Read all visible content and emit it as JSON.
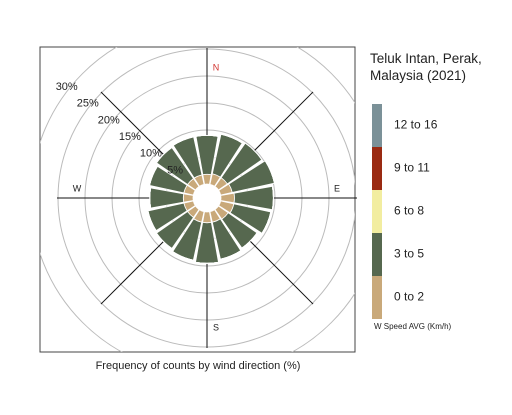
{
  "chart_data": {
    "type": "windrose",
    "title": "Teluk Intan, Perak, Malaysia (2021)",
    "xlabel": "Frequency of counts by wind direction (%)",
    "legend_title": "W Speed AVG (Km/h)",
    "categories": [
      "N",
      null,
      null,
      null,
      "E",
      null,
      null,
      null,
      "S",
      null,
      null,
      null,
      "W",
      null,
      null,
      null
    ],
    "north_color": "#d0312d",
    "series": [
      {
        "name": "0 to 2",
        "color": "#c9a97a",
        "values": [
          1.8,
          2,
          2,
          2.2,
          2.5,
          2.5,
          2.2,
          2,
          2,
          2,
          1.8,
          1.8,
          1.8,
          1.8,
          1.8,
          1.8
        ]
      },
      {
        "name": "3 to 5",
        "color": "#56684f",
        "values": [
          7.2,
          7.5,
          7.8,
          8,
          7.2,
          7,
          6.5,
          7,
          7.5,
          7.2,
          7,
          6.8,
          6.2,
          6.5,
          7,
          7.2
        ]
      },
      {
        "name": "6 to 8",
        "color": "#f2eda0",
        "values": [
          0,
          0,
          0,
          0,
          0,
          0,
          0,
          0,
          0,
          0,
          0,
          0,
          0,
          0,
          0,
          0
        ]
      },
      {
        "name": "9 to 11",
        "color": "#9a2a12",
        "values": [
          0,
          0,
          0,
          0,
          0,
          0,
          0,
          0,
          0,
          0,
          0,
          0,
          0,
          0,
          0,
          0
        ]
      },
      {
        "name": "12 to 16",
        "color": "#7b9198",
        "values": [
          0,
          0,
          0,
          0,
          0,
          0,
          0,
          0,
          0,
          0,
          0,
          0,
          0,
          0,
          0,
          0
        ]
      }
    ],
    "rlim": [
      0,
      30
    ],
    "rticks": [
      {
        "value": 5,
        "label": "5%"
      },
      {
        "value": 10,
        "label": "10%"
      },
      {
        "value": 15,
        "label": "15%"
      },
      {
        "value": 20,
        "label": "20%"
      },
      {
        "value": 25,
        "label": "25%"
      },
      {
        "value": 30,
        "label": "30%"
      }
    ],
    "grid": true
  }
}
